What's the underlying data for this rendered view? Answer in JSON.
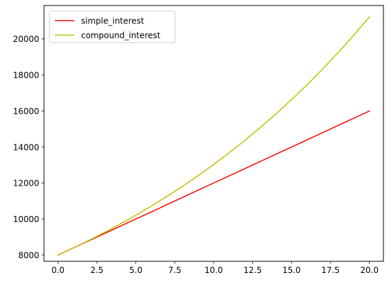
{
  "chart_data": {
    "type": "line",
    "title": "",
    "xlabel": "",
    "ylabel": "",
    "xlim": [
      -0.9,
      20.9
    ],
    "ylim": [
      7650,
      21860
    ],
    "grid": false,
    "legend_position": "top-left",
    "x_ticks": [
      0.0,
      2.5,
      5.0,
      7.5,
      10.0,
      12.5,
      15.0,
      17.5,
      20.0
    ],
    "x_tick_labels": [
      "0.0",
      "2.5",
      "5.0",
      "7.5",
      "10.0",
      "12.5",
      "15.0",
      "17.5",
      "20.0"
    ],
    "y_ticks": [
      8000,
      10000,
      12000,
      14000,
      16000,
      18000,
      20000
    ],
    "y_tick_labels": [
      "8000",
      "10000",
      "12000",
      "14000",
      "16000",
      "18000",
      "20000"
    ],
    "x": [
      0,
      1,
      2,
      3,
      4,
      5,
      6,
      7,
      8,
      9,
      10,
      11,
      12,
      13,
      14,
      15,
      16,
      17,
      18,
      19,
      20
    ],
    "series": [
      {
        "name": "simple_interest",
        "color": "#ff0000",
        "values": [
          8000,
          8400,
          8800,
          9200,
          9600,
          10000,
          10400,
          10800,
          11200,
          11600,
          12000,
          12400,
          12800,
          13200,
          13600,
          14000,
          14400,
          14800,
          15200,
          15600,
          16000
        ]
      },
      {
        "name": "compound_interest",
        "color": "#bfbf00",
        "values": [
          8000,
          8400,
          8820,
          9261,
          9724,
          10210,
          10721,
          11257,
          11820,
          12411,
          13031,
          13683,
          14367,
          15085,
          15840,
          16632,
          17463,
          18336,
          19253,
          20216,
          21226
        ]
      }
    ]
  }
}
